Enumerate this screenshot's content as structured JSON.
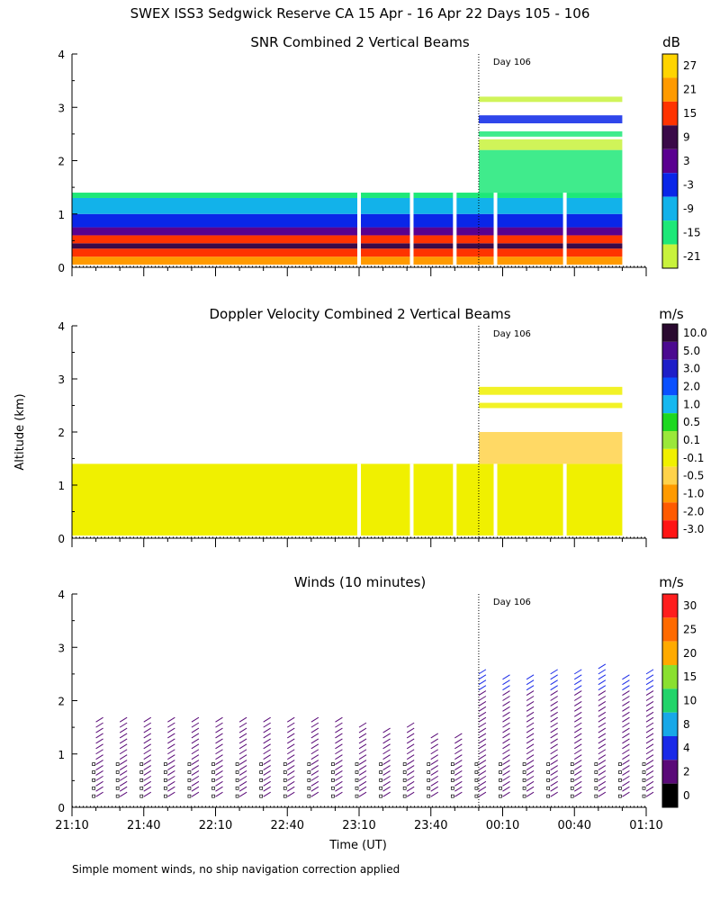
{
  "figure": {
    "title": "SWEX ISS3 Sedgwick Reserve CA  15 Apr - 16 Apr 22 Days 105 - 106",
    "footnote": "Simple moment winds, no ship navigation correction applied",
    "ylabel": "Altitude (km)",
    "xlabel": "Time (UT)",
    "day_marker": "Day 106"
  },
  "chart_data": [
    {
      "type": "heatmap",
      "title": "SNR Combined 2 Vertical Beams",
      "units": "dB",
      "ylim": [
        0,
        4
      ],
      "yticks": [
        "0",
        "1",
        "2",
        "3",
        "4"
      ],
      "colorbar_labels": [
        "27",
        "21",
        "15",
        "9",
        "3",
        "-3",
        "-9",
        "-15",
        "-21"
      ],
      "colorbar_colors": [
        "#ffd400",
        "#ff9a00",
        "#ff3300",
        "#3a0a48",
        "#5a0090",
        "#0a26e8",
        "#12b2ea",
        "#1ee878",
        "#c8f23c"
      ],
      "altitude_layers": [
        {
          "from": 0.05,
          "to": 0.2,
          "value": 21
        },
        {
          "from": 0.2,
          "to": 0.35,
          "value": 15
        },
        {
          "from": 0.35,
          "to": 0.45,
          "value": 9
        },
        {
          "from": 0.45,
          "to": 0.6,
          "value": 15
        },
        {
          "from": 0.6,
          "to": 0.75,
          "value": 3
        },
        {
          "from": 0.75,
          "to": 1.0,
          "value": -3
        },
        {
          "from": 1.0,
          "to": 1.3,
          "value": -9
        },
        {
          "from": 1.3,
          "to": 1.4,
          "value": -15
        }
      ],
      "upper_returns_after_day_change": [
        {
          "from": 1.4,
          "to": 2.2,
          "value": -15
        },
        {
          "from": 2.2,
          "to": 2.4,
          "value": -21
        },
        {
          "from": 2.45,
          "to": 2.55,
          "value": -15
        },
        {
          "from": 2.7,
          "to": 2.85,
          "value": -3
        },
        {
          "from": 3.1,
          "to": 3.2,
          "value": -21
        }
      ]
    },
    {
      "type": "heatmap",
      "title": "Doppler Velocity Combined 2 Vertical Beams",
      "units": "m/s",
      "ylim": [
        0,
        4
      ],
      "yticks": [
        "0",
        "1",
        "2",
        "3",
        "4"
      ],
      "colorbar_labels": [
        "10.0",
        "5.0",
        "3.0",
        "2.0",
        "1.0",
        "0.5",
        "0.1",
        "-0.1",
        "-0.5",
        "-1.0",
        "-2.0",
        "-3.0"
      ],
      "colorbar_colors": [
        "#2a0a30",
        "#4b0a90",
        "#1e1ec8",
        "#0a50ff",
        "#16b8f0",
        "#1ed820",
        "#9ae83a",
        "#f0f000",
        "#ffd24a",
        "#ff9a00",
        "#ff5a00",
        "#ff1414"
      ],
      "altitude_layers": [
        {
          "from": 0.05,
          "to": 1.4,
          "value": -0.1
        }
      ],
      "upper_returns_after_day_change": [
        {
          "from": 1.4,
          "to": 2.0,
          "value": -0.5
        },
        {
          "from": 2.45,
          "to": 2.55,
          "value": -0.1
        },
        {
          "from": 2.7,
          "to": 2.85,
          "value": -0.1
        }
      ]
    },
    {
      "type": "scatter",
      "title": "Winds (10 minutes)",
      "units": "m/s",
      "ylim": [
        0,
        4
      ],
      "yticks": [
        "0",
        "1",
        "2",
        "3",
        "4"
      ],
      "colorbar_labels": [
        "30",
        "25",
        "20",
        "15",
        "10",
        "8",
        "4",
        "2",
        "0"
      ],
      "colorbar_colors": [
        "#ff1e1e",
        "#ff6a00",
        "#ffaa00",
        "#8ae030",
        "#22d46a",
        "#18a8e8",
        "#1a2ae8",
        "#5a0a78",
        "#000000"
      ],
      "barb_columns_x_minutes": [
        10,
        20,
        30,
        40,
        50,
        60,
        70,
        80,
        90,
        100,
        110,
        120,
        130,
        140,
        150,
        160,
        170,
        180,
        190,
        200,
        210,
        220,
        230,
        240
      ],
      "barb_top_km": [
        1.7,
        1.7,
        1.7,
        1.7,
        1.7,
        1.7,
        1.7,
        1.7,
        1.7,
        1.7,
        1.7,
        1.6,
        1.5,
        1.6,
        1.3,
        1.4,
        2.6,
        2.5,
        2.5,
        2.6,
        2.6,
        2.7,
        2.5,
        2.6
      ]
    }
  ],
  "time_axis": {
    "start_minutes": 0,
    "end_minutes": 240,
    "day_change_minutes": 170,
    "tick_labels": [
      "21:10",
      "21:40",
      "22:10",
      "22:40",
      "23:10",
      "23:40",
      "00:10",
      "00:40",
      "01:10"
    ],
    "tick_minutes": [
      0,
      30,
      60,
      90,
      120,
      150,
      180,
      210,
      240
    ]
  }
}
